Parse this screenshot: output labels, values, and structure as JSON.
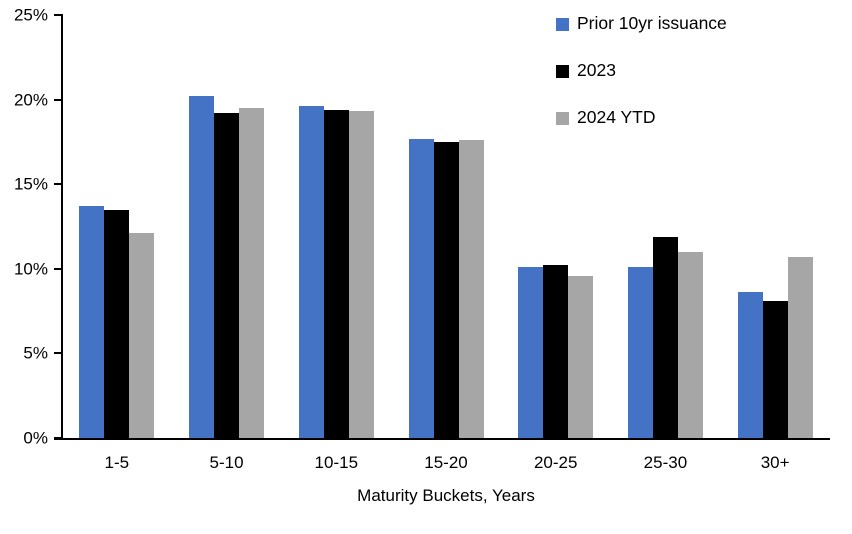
{
  "chart_data": {
    "type": "bar",
    "title": "",
    "categories": [
      "1-5",
      "5-10",
      "10-15",
      "15-20",
      "20-25",
      "25-30",
      "30+"
    ],
    "series": [
      {
        "name": "Prior 10yr issuance",
        "color": "#4472C4",
        "values": [
          13.7,
          20.2,
          19.6,
          17.7,
          10.1,
          10.1,
          8.6
        ]
      },
      {
        "name": "2023",
        "color": "#000000",
        "values": [
          13.5,
          19.2,
          19.4,
          17.5,
          10.2,
          11.9,
          8.1
        ]
      },
      {
        "name": "2024 YTD",
        "color": "#A6A6A6",
        "values": [
          12.1,
          19.5,
          19.3,
          17.6,
          9.6,
          11.0,
          10.7
        ]
      }
    ],
    "xlabel": "Maturity Buckets, Years",
    "ylabel": "",
    "ylim": [
      0,
      25
    ],
    "ytick_step": 5,
    "ytick_labels": [
      "0%",
      "5%",
      "10%",
      "15%",
      "20%",
      "25%"
    ],
    "grid": false,
    "legend_position": "top-right",
    "axis_color": "#000000",
    "background_color": "#FFFFFF"
  }
}
